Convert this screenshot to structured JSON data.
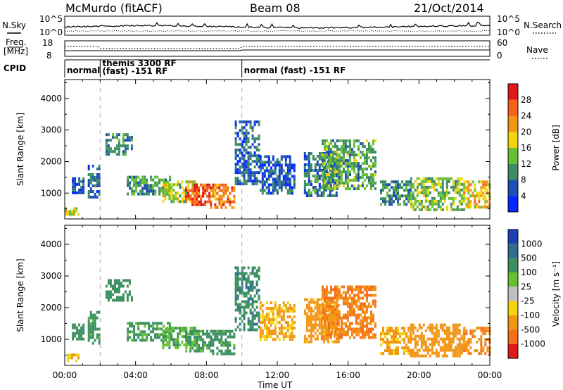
{
  "header": {
    "station": "McMurdo (fitACF)",
    "beam": "Beam 08",
    "date": "21/Oct/2014"
  },
  "noise_panel": {
    "left_label": "N.Sky",
    "right_label": "N.Search",
    "left_ticks": [
      "10^5",
      "10^0"
    ],
    "right_ticks": [
      "10^5",
      "10^0"
    ]
  },
  "freq_panel": {
    "left_label_1": "Freq.",
    "left_label_2": "[MHz]",
    "right_label": "Nave",
    "left_ticks": [
      "18",
      "8"
    ],
    "right_ticks": [
      "60",
      "0"
    ]
  },
  "cpid_panel": {
    "label": "CPID",
    "segments": [
      {
        "start_hour": 0.0,
        "end_hour": 2.0,
        "lines": [
          "normal"
        ]
      },
      {
        "start_hour": 2.0,
        "end_hour": 10.0,
        "lines": [
          "themis 3300 RF",
          "(fast) -151 RF"
        ]
      },
      {
        "start_hour": 10.0,
        "end_hour": 24.0,
        "lines": [
          "normal (fast) -151 RF"
        ]
      }
    ]
  },
  "chart_data": {
    "type": "heatmap",
    "x_axis": {
      "label": "Time UT",
      "range_hours": [
        0,
        24
      ],
      "ticks": [
        "00:00",
        "04:00",
        "08:00",
        "12:00",
        "16:00",
        "20:00",
        "00:00"
      ]
    },
    "mode_change_hours": [
      2.0,
      10.0
    ],
    "panels": [
      {
        "name": "power",
        "ylabel": "Slant Range [km]",
        "ylim": [
          180,
          4600
        ],
        "yticks": [
          1000,
          2000,
          3000,
          4000
        ],
        "colorbar": {
          "label": "Power [dB]",
          "ticks": [
            "4",
            "8",
            "12",
            "16",
            "20",
            "24",
            "28"
          ],
          "colors": [
            "#0028ff",
            "#1f4fb4",
            "#3c8c64",
            "#66c033",
            "#f2d50c",
            "#f29513",
            "#f5601a",
            "#e11818"
          ]
        }
      },
      {
        "name": "velocity",
        "ylabel": "Slant Range [km]",
        "ylim": [
          180,
          4600
        ],
        "yticks": [
          1000,
          2000,
          3000,
          4000
        ],
        "colorbar": {
          "label": "Velocity [m s⁻¹]",
          "ticks": [
            "1000",
            "500",
            "100",
            "25",
            "-25",
            "-100",
            "-500",
            "-1000"
          ],
          "colors": [
            "#1f3fb4",
            "#2f6f8c",
            "#3c9060",
            "#66c033",
            "#c0c0c0",
            "#f2d50c",
            "#f29513",
            "#f56e1a",
            "#e11818"
          ]
        }
      }
    ],
    "echo_regions": [
      {
        "t0": 0.0,
        "t1": 0.8,
        "r0": 300,
        "r1": 550,
        "power": 16,
        "velocity": -100
      },
      {
        "t0": 0.4,
        "t1": 1.0,
        "r0": 1000,
        "r1": 1500,
        "power": 6,
        "velocity": 300
      },
      {
        "t0": 1.3,
        "t1": 2.0,
        "r0": 900,
        "r1": 1900,
        "power": 7,
        "velocity": 200
      },
      {
        "t0": 2.3,
        "t1": 3.8,
        "r0": 2200,
        "r1": 2900,
        "power": 9,
        "velocity": 300
      },
      {
        "t0": 3.5,
        "t1": 6.0,
        "r0": 950,
        "r1": 1550,
        "power": 11,
        "velocity": 150
      },
      {
        "t0": 5.5,
        "t1": 7.5,
        "r0": 700,
        "r1": 1400,
        "power": 16,
        "velocity": 80
      },
      {
        "t0": 6.8,
        "t1": 8.2,
        "r0": 650,
        "r1": 1300,
        "power": 27,
        "velocity": 150
      },
      {
        "t0": 8.2,
        "t1": 9.6,
        "r0": 550,
        "r1": 1300,
        "power": 24,
        "velocity": 200
      },
      {
        "t0": 9.6,
        "t1": 11.0,
        "r0": 1300,
        "r1": 3300,
        "power": 7,
        "velocity": 400
      },
      {
        "t0": 11.0,
        "t1": 13.0,
        "r0": 1000,
        "r1": 2200,
        "power": 6,
        "velocity": -120
      },
      {
        "t0": 13.5,
        "t1": 15.5,
        "r0": 900,
        "r1": 2300,
        "power": 8,
        "velocity": -200
      },
      {
        "t0": 14.5,
        "t1": 17.5,
        "r0": 1100,
        "r1": 2700,
        "power": 12,
        "velocity": -500
      },
      {
        "t0": 17.8,
        "t1": 19.5,
        "r0": 600,
        "r1": 1400,
        "power": 10,
        "velocity": -150
      },
      {
        "t0": 19.5,
        "t1": 22.5,
        "r0": 500,
        "r1": 1500,
        "power": 14,
        "velocity": -300
      },
      {
        "t0": 22.5,
        "t1": 24.0,
        "r0": 550,
        "r1": 1400,
        "power": 20,
        "velocity": -400
      }
    ]
  }
}
